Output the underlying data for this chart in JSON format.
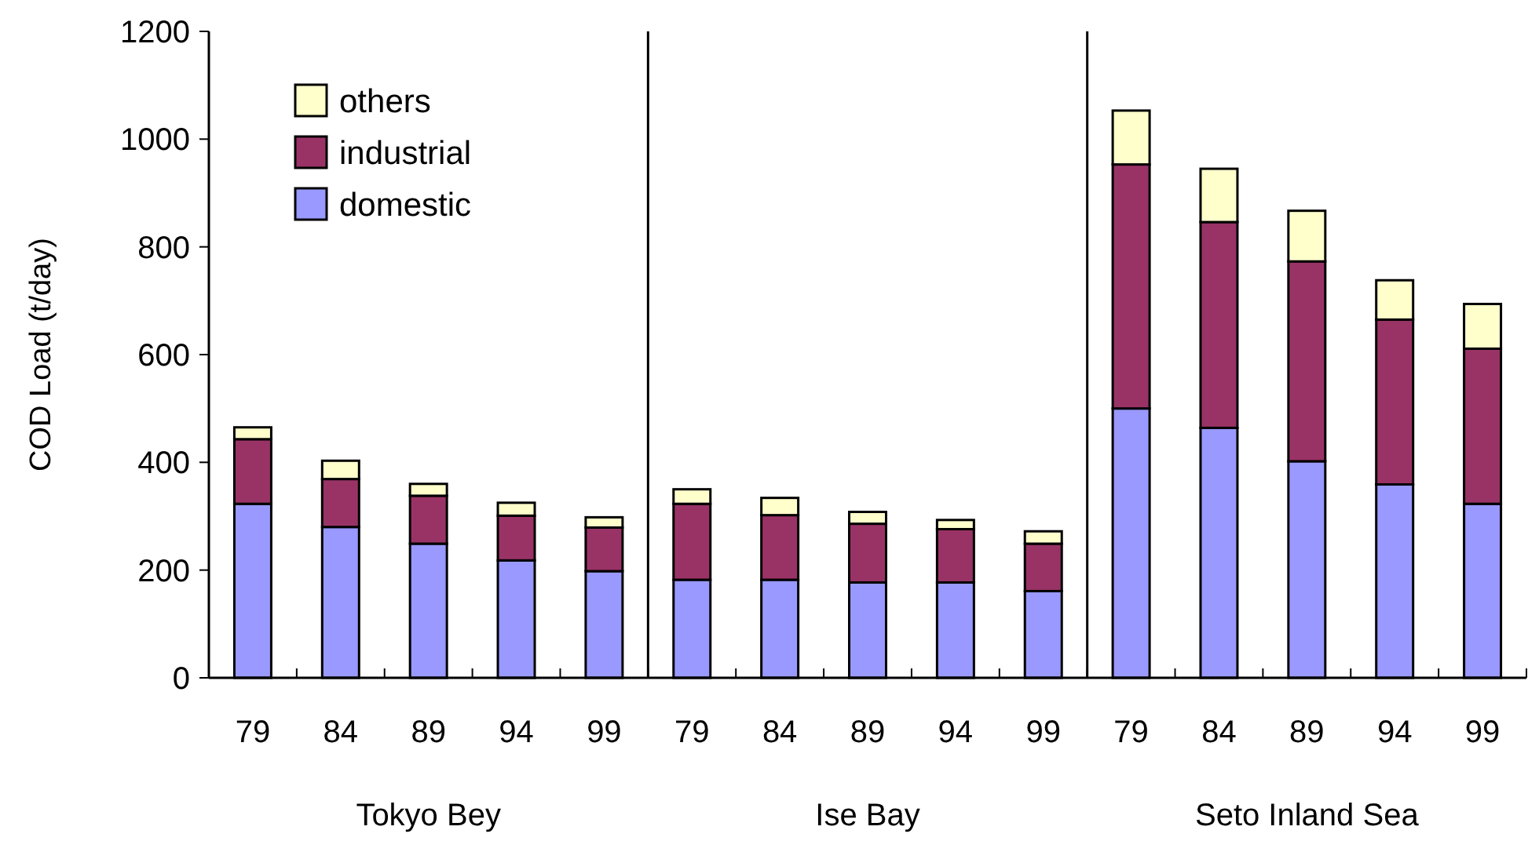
{
  "chart_data": {
    "type": "bar",
    "stacked": true,
    "ylabel": "COD Load (t/day)",
    "categories": [
      "79",
      "84",
      "89",
      "94",
      "99",
      "79",
      "84",
      "89",
      "94",
      "99",
      "79",
      "84",
      "89",
      "94",
      "99"
    ],
    "series": [
      {
        "name": "domestic",
        "color": "#9999ff",
        "values": [
          323,
          280,
          249,
          218,
          198,
          182,
          182,
          177,
          177,
          161,
          500,
          464,
          402,
          359,
          323
        ]
      },
      {
        "name": "industrial",
        "color": "#993366",
        "values": [
          120,
          89,
          89,
          83,
          81,
          141,
          120,
          109,
          99,
          88,
          453,
          382,
          371,
          306,
          288
        ]
      },
      {
        "name": "others",
        "color": "#ffffcc",
        "values": [
          22,
          34,
          22,
          24,
          19,
          27,
          32,
          22,
          17,
          23,
          100,
          99,
          94,
          73,
          83
        ]
      }
    ],
    "ylim": [
      0,
      1200
    ],
    "yticks": [
      0,
      200,
      400,
      600,
      800,
      1000,
      1200
    ],
    "legend": "top left",
    "annotations": [
      "Tokyo Bey",
      "Ise Bay",
      "Seto Inland Sea"
    ]
  }
}
